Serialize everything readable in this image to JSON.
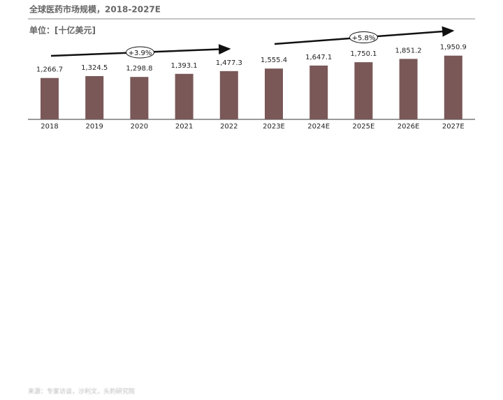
{
  "chart_data": {
    "type": "bar",
    "title": "全球医药市场规模，2018-2027E",
    "unit": "单位：[十亿美元]",
    "categories": [
      "2018",
      "2019",
      "2020",
      "2021",
      "2022",
      "2023E",
      "2024E",
      "2025E",
      "2026E",
      "2027E"
    ],
    "values": [
      1266.7,
      1324.5,
      1298.8,
      1393.1,
      1477.3,
      1555.4,
      1647.1,
      1750.1,
      1851.2,
      1950.9
    ],
    "value_labels": [
      "1,266.7",
      "1,324.5",
      "1,298.8",
      "1,393.1",
      "1,477.3",
      "1,555.4",
      "1,647.1",
      "1,750.1",
      "1,851.2",
      "1,950.9"
    ],
    "color": "#7a5858",
    "ylim": [
      0,
      2500
    ],
    "annotations": [
      "+3.9%",
      "+5.8%"
    ],
    "source": "来源：专家访谈，沙利文，头豹研究院"
  }
}
